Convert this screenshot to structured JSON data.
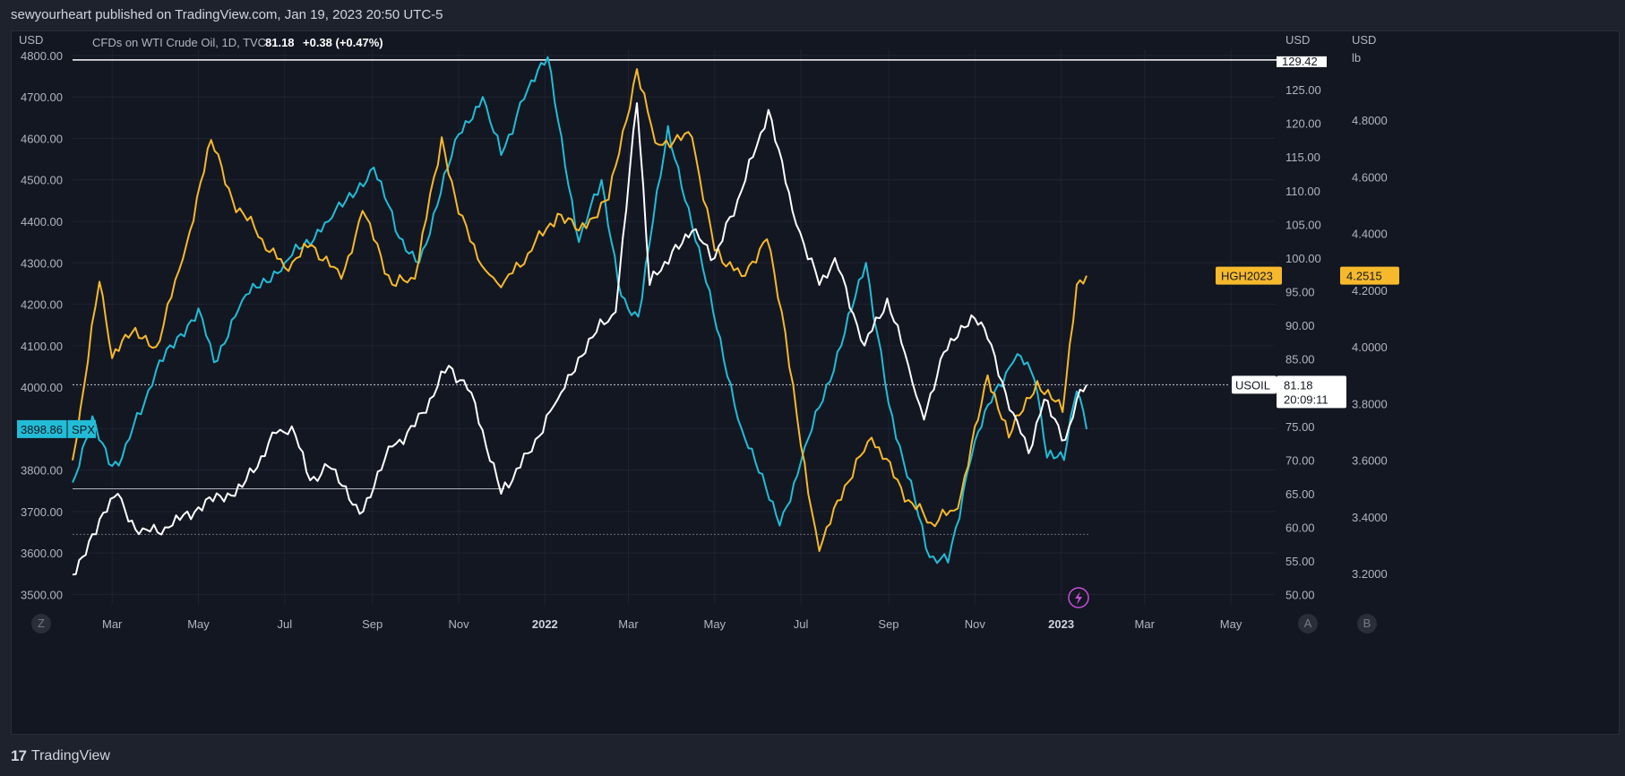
{
  "header": {
    "published": "sewyourheart published on TradingView.com, Jan 19, 2023 20:50 UTC-5"
  },
  "legend": {
    "symbol": "CFDs on WTI Crude Oil, 1D, TVC",
    "price": "81.18",
    "change": "+0.38 (+0.47%)"
  },
  "footer": {
    "brand": "TradingView"
  },
  "buttons": {
    "z": "Z",
    "a": "A",
    "b": "B"
  },
  "colors": {
    "background": "#131722",
    "spx": "#22bcd6",
    "copper": "#f6b92b",
    "oil": "#ffffff",
    "grid": "#1f2330",
    "text": "#b2b5be"
  },
  "chart_data": {
    "type": "line",
    "x_ticks": [
      "Mar",
      "May",
      "Jul",
      "Sep",
      "Nov",
      "2022",
      "Mar",
      "May",
      "Jul",
      "Sep",
      "Nov",
      "2023",
      "Mar",
      "May"
    ],
    "left_axis": {
      "unit": "USD",
      "ticks": [
        "4800.00",
        "4700.00",
        "4600.00",
        "4500.00",
        "4400.00",
        "4300.00",
        "4200.00",
        "4100.00",
        "4000.00",
        "3900.00",
        "3800.00",
        "3700.00",
        "3600.00",
        "3500.00"
      ],
      "range": [
        3475,
        4815
      ]
    },
    "mid_axis": {
      "unit": "USD",
      "ticks": [
        "125.00",
        "120.00",
        "115.00",
        "110.00",
        "105.00",
        "100.00",
        "95.00",
        "90.00",
        "85.00",
        "80.00",
        "75.00",
        "70.00",
        "65.00",
        "60.00",
        "55.00",
        "50.00"
      ],
      "top_value": "129.42",
      "range": [
        48.5,
        131
      ]
    },
    "right_axis": {
      "unit": "USD",
      "unit2": "lb",
      "ticks": [
        "4.8000",
        "4.6000",
        "4.4000",
        "4.2000",
        "4.0000",
        "3.8000",
        "3.6000",
        "3.4000",
        "3.2000"
      ],
      "range": [
        3.09,
        5.05
      ]
    },
    "last_labels": {
      "spx": {
        "name": "SPX",
        "value": "3898.86"
      },
      "copper": {
        "name": "HGH2023",
        "value": "4.2515"
      },
      "oil": {
        "name": "USOIL",
        "value": "81.18",
        "countdown": "20:09:11"
      }
    },
    "series": [
      {
        "name": "SPX",
        "x": [
          "2021-02-01",
          "2021-02-15",
          "2021-03-01",
          "2021-03-08",
          "2021-04-01",
          "2021-05-01",
          "2021-05-12",
          "2021-06-01",
          "2021-07-01",
          "2021-08-01",
          "2021-09-02",
          "2021-09-20",
          "2021-10-04",
          "2021-11-01",
          "2021-11-18",
          "2021-12-01",
          "2021-12-20",
          "2022-01-03",
          "2022-01-25",
          "2022-02-10",
          "2022-02-24",
          "2022-03-08",
          "2022-03-29",
          "2022-04-15",
          "2022-05-20",
          "2022-06-16",
          "2022-07-01",
          "2022-08-01",
          "2022-08-16",
          "2022-09-01",
          "2022-09-30",
          "2022-10-13",
          "2022-11-01",
          "2022-11-15",
          "2022-12-01",
          "2022-12-13",
          "2022-12-22",
          "2023-01-03",
          "2023-01-12",
          "2023-01-19"
        ],
        "values": [
          3770,
          3930,
          3810,
          3830,
          4040,
          4190,
          4060,
          4210,
          4300,
          4400,
          4530,
          4360,
          4300,
          4610,
          4700,
          4560,
          4720,
          4796,
          4350,
          4500,
          4220,
          4170,
          4630,
          4390,
          3900,
          3666,
          3820,
          4130,
          4300,
          3960,
          3590,
          3577,
          3870,
          3990,
          4080,
          4019,
          3830,
          3824,
          3990,
          3898.86
        ]
      },
      {
        "name": "HGH2023",
        "x": [
          "2021-02-01",
          "2021-02-20",
          "2021-03-01",
          "2021-03-15",
          "2021-04-01",
          "2021-04-20",
          "2021-05-10",
          "2021-05-25",
          "2021-06-15",
          "2021-07-01",
          "2021-07-20",
          "2021-08-10",
          "2021-08-25",
          "2021-09-15",
          "2021-10-01",
          "2021-10-20",
          "2021-11-01",
          "2021-11-20",
          "2021-12-01",
          "2021-12-20",
          "2022-01-10",
          "2022-01-25",
          "2022-02-15",
          "2022-03-07",
          "2022-03-20",
          "2022-04-15",
          "2022-05-01",
          "2022-05-20",
          "2022-06-07",
          "2022-06-20",
          "2022-07-01",
          "2022-07-14",
          "2022-08-01",
          "2022-08-20",
          "2022-09-15",
          "2022-10-01",
          "2022-10-20",
          "2022-11-01",
          "2022-11-10",
          "2022-11-25",
          "2022-12-15",
          "2023-01-02",
          "2023-01-12",
          "2023-01-19"
        ],
        "values": [
          3.6,
          4.23,
          3.96,
          4.05,
          4.0,
          4.31,
          4.73,
          4.52,
          4.38,
          4.28,
          4.36,
          4.24,
          4.48,
          4.22,
          4.24,
          4.74,
          4.47,
          4.27,
          4.21,
          4.33,
          4.47,
          4.41,
          4.52,
          4.98,
          4.72,
          4.74,
          4.34,
          4.25,
          4.38,
          4.05,
          3.65,
          3.28,
          3.51,
          3.68,
          3.46,
          3.38,
          3.43,
          3.72,
          3.9,
          3.68,
          3.88,
          3.77,
          4.22,
          4.2515
        ]
      },
      {
        "name": "USOIL",
        "x": [
          "2021-02-01",
          "2021-02-15",
          "2021-03-05",
          "2021-03-20",
          "2021-04-10",
          "2021-05-01",
          "2021-06-01",
          "2021-06-25",
          "2021-07-06",
          "2021-07-19",
          "2021-08-01",
          "2021-08-23",
          "2021-09-15",
          "2021-10-01",
          "2021-10-25",
          "2021-11-10",
          "2021-12-01",
          "2021-12-20",
          "2022-01-10",
          "2022-02-01",
          "2022-02-20",
          "2022-03-07",
          "2022-03-16",
          "2022-04-01",
          "2022-04-15",
          "2022-05-01",
          "2022-05-20",
          "2022-06-08",
          "2022-06-25",
          "2022-07-14",
          "2022-07-25",
          "2022-08-15",
          "2022-08-31",
          "2022-09-15",
          "2022-09-26",
          "2022-10-10",
          "2022-11-01",
          "2022-11-10",
          "2022-11-28",
          "2022-12-09",
          "2022-12-20",
          "2023-01-04",
          "2023-01-12",
          "2023-01-19"
        ],
        "values": [
          53,
          59,
          65,
          59,
          60,
          63,
          66,
          74,
          75,
          67,
          69,
          62,
          72,
          75,
          84,
          80,
          65,
          71,
          79,
          88,
          92,
          123,
          96,
          101,
          104,
          100,
          110,
          122,
          107,
          96,
          100,
          87,
          94,
          84,
          76,
          86,
          91,
          88,
          77,
          71,
          79,
          73,
          79,
          81.18
        ]
      }
    ],
    "reference_lines": [
      {
        "axis": "mid",
        "value": 129.42
      },
      {
        "axis": "mid",
        "value": 81.18
      },
      {
        "axis": "left",
        "value": 3755
      },
      {
        "axis": "left",
        "value": 3645
      }
    ]
  }
}
